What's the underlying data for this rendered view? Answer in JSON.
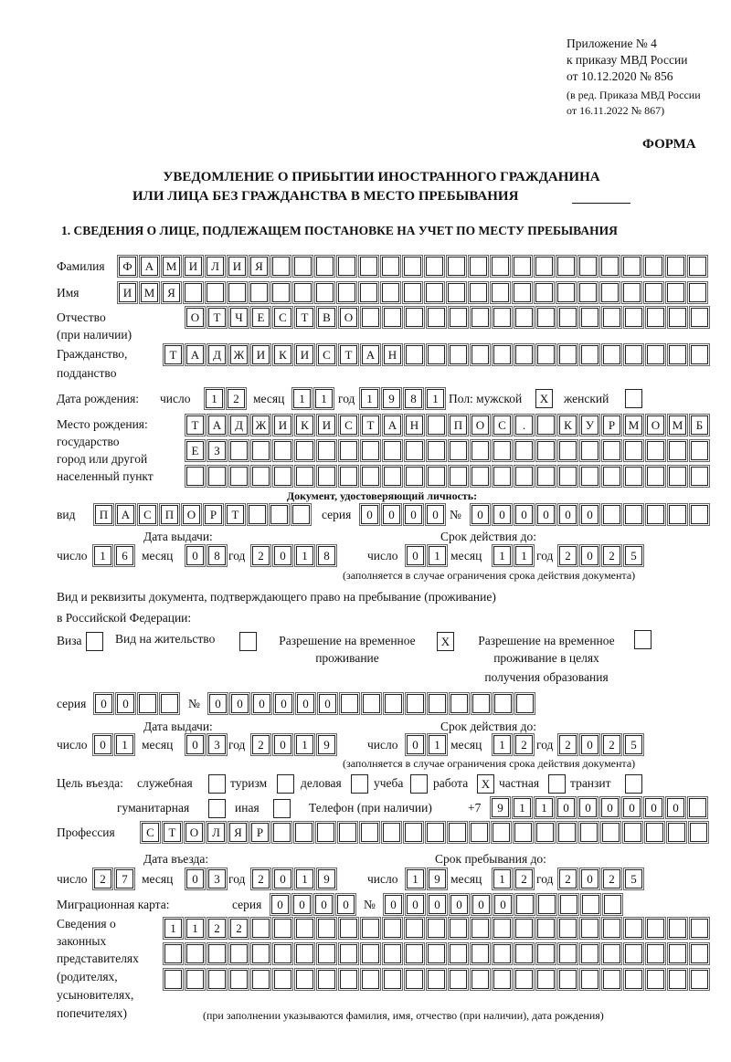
{
  "header": {
    "appendix": "Приложение № 4",
    "order": "к приказу МВД России",
    "order_date": "от 10.12.2020 № 856",
    "edit1": "(в ред. Приказа МВД России",
    "edit2": "от 16.11.2022 № 867)",
    "form": "ФОРМА",
    "title1": "УВЕДОМЛЕНИЕ О ПРИБЫТИИ ИНОСТРАННОГО ГРАЖДАНИНА",
    "title2": "ИЛИ ЛИЦА БЕЗ ГРАЖДАНСТВА В МЕСТО ПРЕБЫВАНИЯ",
    "section1": "1. СВЕДЕНИЯ О ЛИЦЕ, ПОДЛЕЖАЩЕМ ПОСТАНОВКЕ НА УЧЕТ ПО МЕСТУ ПРЕБЫВАНИЯ"
  },
  "person": {
    "surname_label": "Фамилия",
    "surname": "ФАМИЛИЯ",
    "name_label": "Имя",
    "name": "ИМЯ",
    "patronymic_label1": "Отчество",
    "patronymic_label2": "(при наличии)",
    "patronymic": "ОТЧЕСТВО",
    "citizenship_label1": "Гражданство,",
    "citizenship_label2": "подданство",
    "citizenship": "ТАДЖИКИСТАН",
    "birth_label": "Дата рождения:",
    "day_label": "число",
    "month_label": "месяц",
    "year_label": "год",
    "birth_day": "12",
    "birth_month": "11",
    "birth_year": "1981",
    "sex_label": "Пол: мужской",
    "male": true,
    "female_label": "женский",
    "female": false,
    "birthplace_label1": "Место рождения:",
    "birthplace_label2": "государство",
    "birthplace_label3": "город или другой",
    "birthplace_label4": "населенный пункт",
    "birthplace_row1": "ТАДЖИКИСТАН ПОС. КУРМОМБ",
    "birthplace_row2": "ЕЗ",
    "birthplace_row3": ""
  },
  "id_doc": {
    "heading": "Документ, удостоверяющий личность:",
    "kind_label": "вид",
    "kind": "ПАСПОРТ",
    "series_label": "серия",
    "series": "0000",
    "number_label": "№",
    "number": "000000",
    "issue_label": "Дата выдачи:",
    "issue_day": "16",
    "issue_month": "08",
    "issue_year": "2018",
    "valid_label": "Срок действия до:",
    "valid_day": "01",
    "valid_month": "11",
    "valid_year": "2025",
    "note": "(заполняется в случае ограничения срока действия документа)"
  },
  "stay_doc": {
    "heading1": "Вид и реквизиты документа, подтверждающего право на пребывание (проживание)",
    "heading2": "в Российской Федерации:",
    "visa_label": "Виза",
    "visa": false,
    "residence_label": "Вид на жительство",
    "residence": false,
    "temp_label1": "Разрешение на временное",
    "temp_label2": "проживание",
    "temp": true,
    "edu_label1": "Разрешение на временное",
    "edu_label2": "проживание в целях",
    "edu_label3": "получения образования",
    "edu": false,
    "series_label": "серия",
    "series": "00",
    "number_label": "№",
    "number": "000000",
    "issue_label": "Дата выдачи:",
    "issue_day": "01",
    "issue_month": "03",
    "issue_year": "2019",
    "valid_label": "Срок действия до:",
    "valid_day": "01",
    "valid_month": "12",
    "valid_year": "2025",
    "note": "(заполняется в случае ограничения срока действия документа)"
  },
  "purpose": {
    "label": "Цель въезда:",
    "items": [
      {
        "label": "служебная",
        "checked": false
      },
      {
        "label": "туризм",
        "checked": false
      },
      {
        "label": "деловая",
        "checked": false
      },
      {
        "label": "учеба",
        "checked": false
      },
      {
        "label": "работа",
        "checked": true
      },
      {
        "label": "частная",
        "checked": false
      },
      {
        "label": "транзит",
        "checked": false
      },
      {
        "label": "гуманитарная",
        "checked": false
      },
      {
        "label": "иная",
        "checked": false
      }
    ]
  },
  "phone": {
    "label": "Телефон (при наличии)",
    "prefix": "+7",
    "value": "911000000"
  },
  "profession": {
    "label": "Профессия",
    "value": "СТОЛЯР"
  },
  "entry": {
    "label": "Дата въезда:",
    "day": "27",
    "month": "03",
    "year": "2019",
    "stay_label": "Срок пребывания до:",
    "stay_day": "19",
    "stay_month": "12",
    "stay_year": "2025"
  },
  "migration": {
    "label": "Миграционная карта:",
    "series_label": "серия",
    "series": "0000",
    "number_label": "№",
    "number": "000000"
  },
  "representatives": {
    "label1": "Сведения о",
    "label2": "законных",
    "label3": "представителях",
    "label4": "(родителях,",
    "label5": "усыновителях,",
    "label6": "попечителях)",
    "row1": "1122",
    "row2": "",
    "row3": "",
    "note": "(при заполнении указываются фамилия, имя, отчество (при наличии), дата рождения)"
  }
}
